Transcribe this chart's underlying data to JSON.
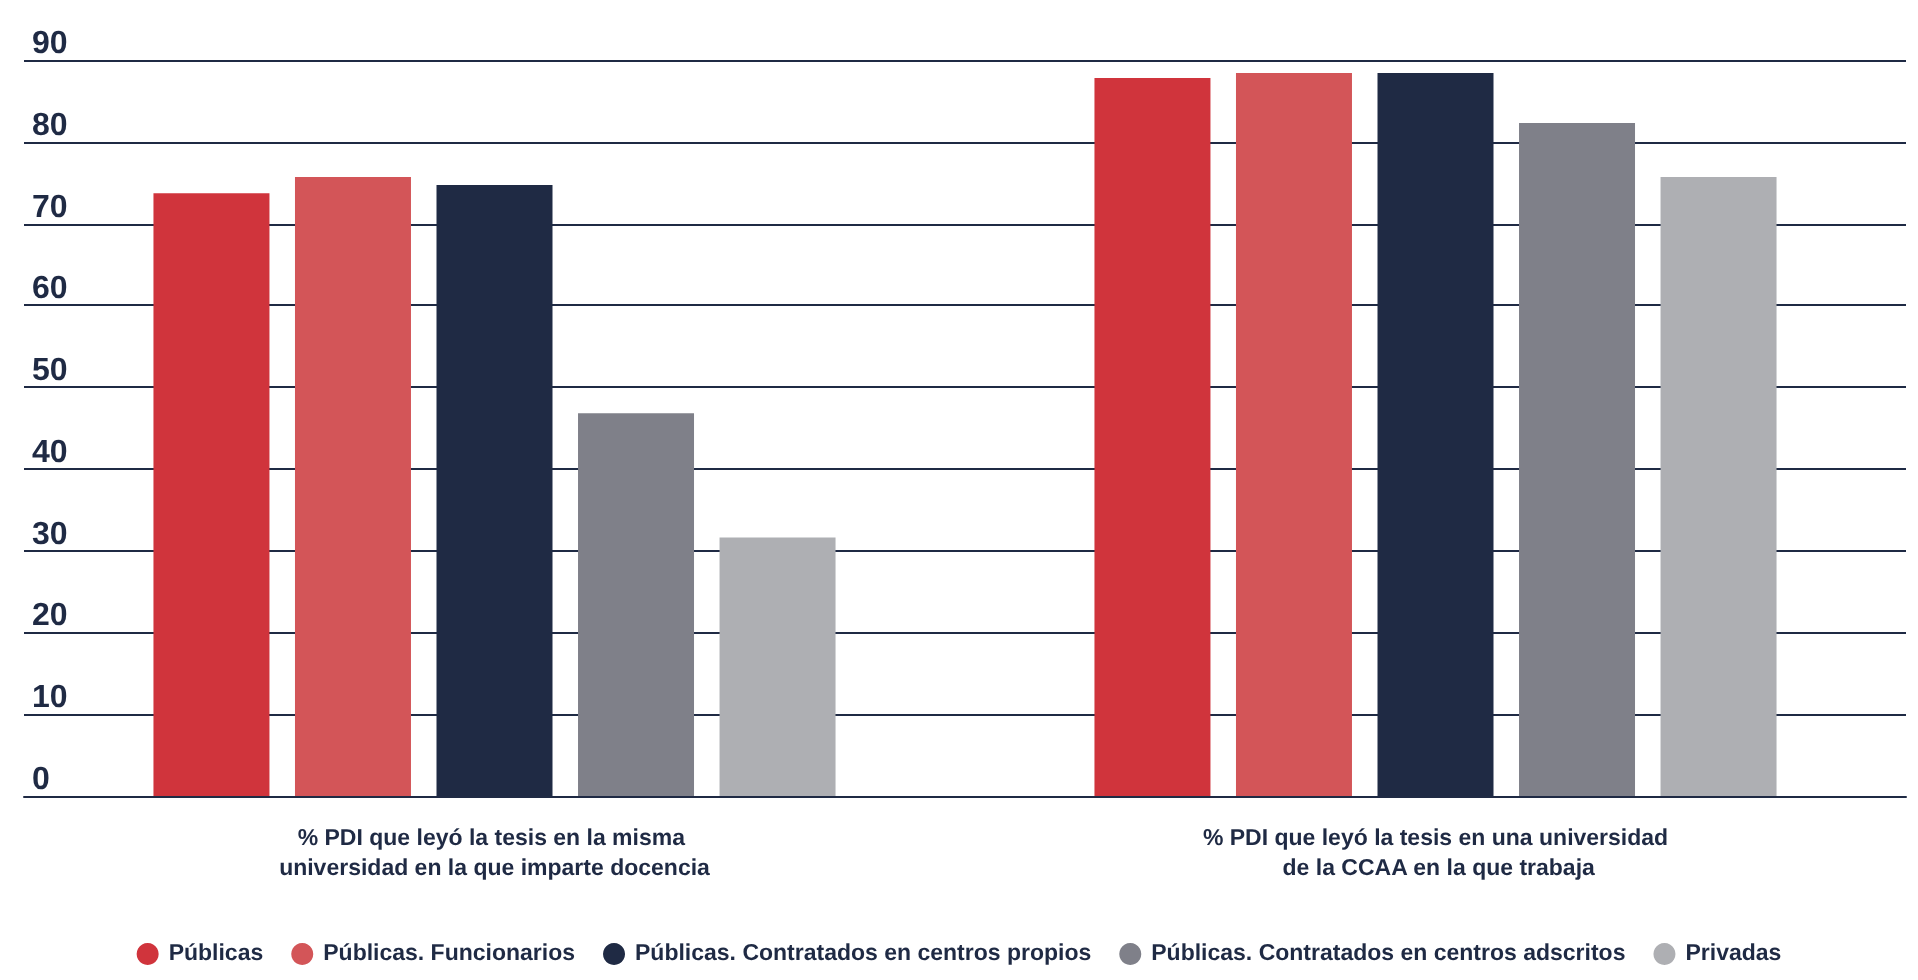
{
  "chart_data": {
    "type": "bar",
    "categories": [
      "% PDI que leyó la tesis en la misma universidad en la que imparte docencia",
      "% PDI que leyó la tesis en una universidad de la CCAA en la que trabaja"
    ],
    "series": [
      {
        "name": "Públicas",
        "color": "#d0343c",
        "values": [
          73.7,
          87.8
        ]
      },
      {
        "name": "Públicas. Funcionarios",
        "color": "#d35558",
        "values": [
          75.7,
          88.4
        ]
      },
      {
        "name": "Públicas. Contratados en centros propios",
        "color": "#1f2a44",
        "values": [
          74.7,
          88.4
        ]
      },
      {
        "name": "Públicas. Contratados en centros adscritos",
        "color": "#7f8089",
        "values": [
          46.8,
          82.3
        ]
      },
      {
        "name": "Privadas",
        "color": "#aeafb3",
        "values": [
          31.6,
          75.7
        ]
      }
    ],
    "ylim": [
      0,
      90
    ],
    "yticks": [
      0,
      10,
      20,
      30,
      40,
      50,
      60,
      70,
      80,
      90
    ],
    "grid": "y",
    "legend": "bottom"
  }
}
